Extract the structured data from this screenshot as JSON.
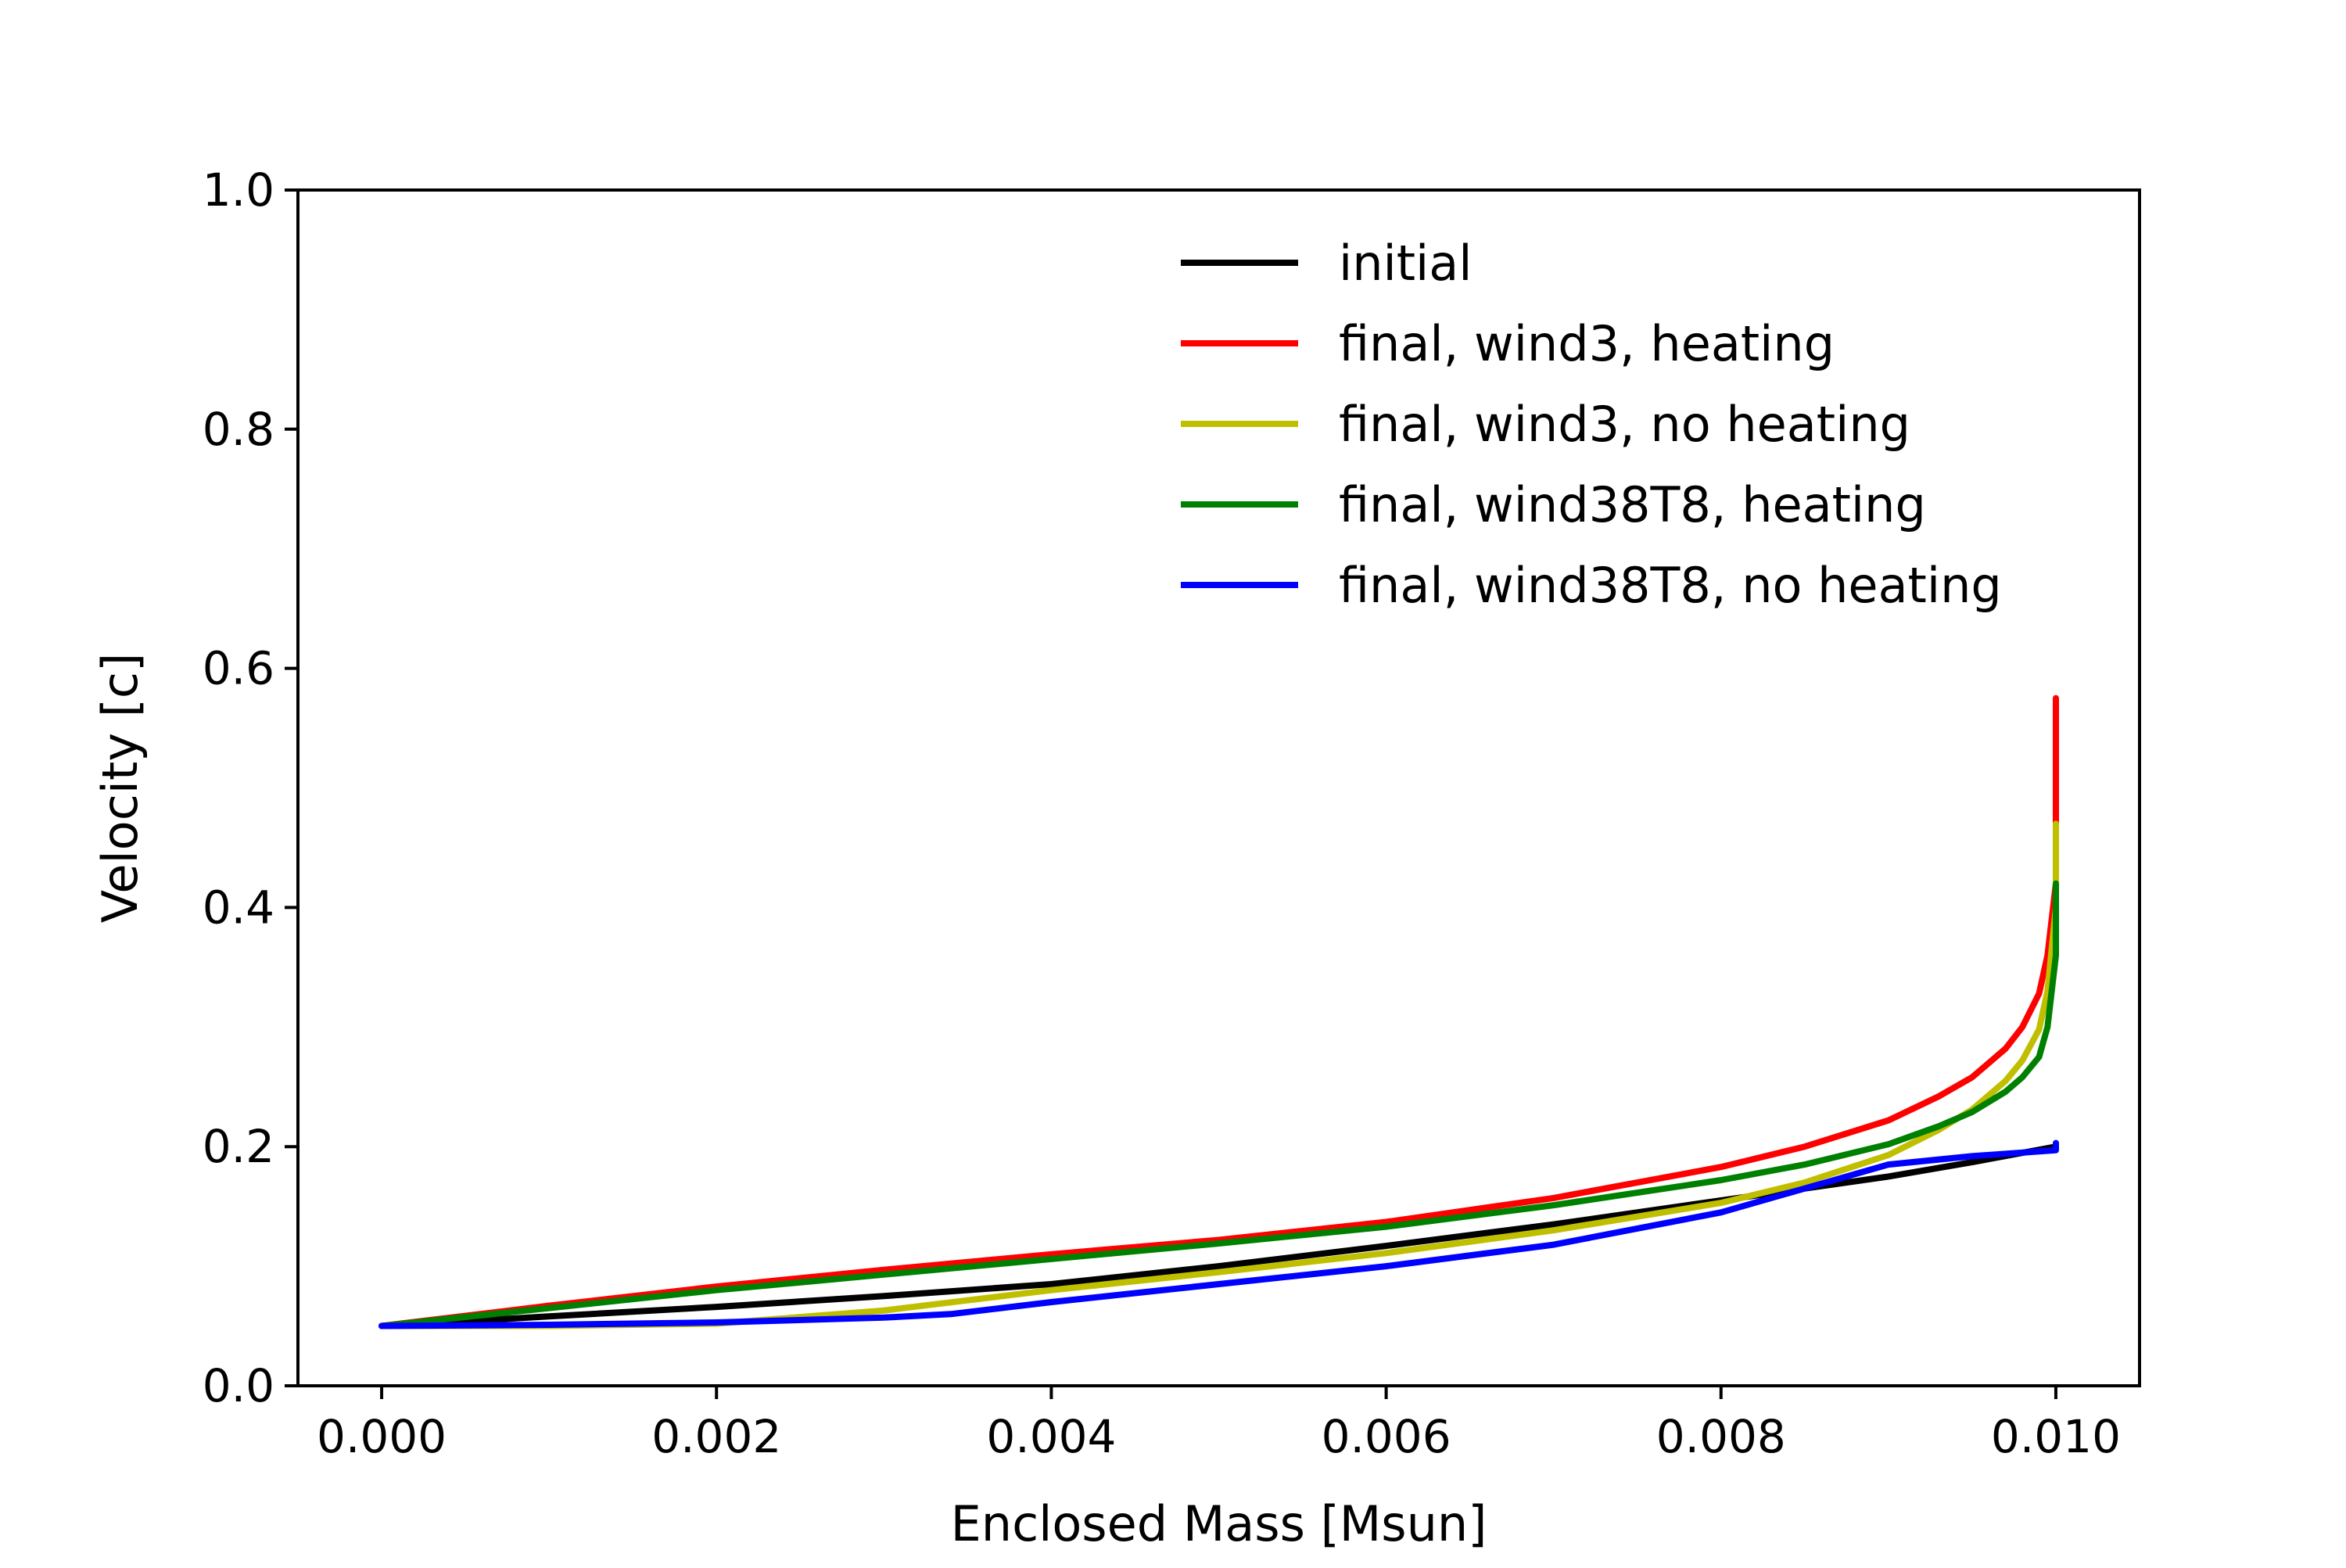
{
  "chart_data": {
    "type": "line",
    "title": "",
    "xlabel": "Enclosed Mass [Msun]",
    "ylabel": "Velocity [c]",
    "xlim": [
      -0.0005,
      0.0105
    ],
    "ylim": [
      0.0,
      1.0
    ],
    "x_ticks": [
      "0.000",
      "0.002",
      "0.004",
      "0.006",
      "0.008",
      "0.010"
    ],
    "y_ticks": [
      "0.0",
      "0.2",
      "0.4",
      "0.6",
      "0.8",
      "1.0"
    ],
    "legend_position": "top-right",
    "grid": false,
    "series": [
      {
        "name": "initial",
        "color": "#000000",
        "x": [
          0.0,
          0.001,
          0.002,
          0.003,
          0.004,
          0.005,
          0.006,
          0.007,
          0.008,
          0.009,
          0.0095,
          0.01
        ],
        "y": [
          0.05,
          0.058,
          0.066,
          0.075,
          0.085,
          0.1,
          0.117,
          0.135,
          0.155,
          0.175,
          0.187,
          0.2
        ]
      },
      {
        "name": "final, wind3, heating",
        "color": "#ff0000",
        "x": [
          0.0,
          0.001,
          0.002,
          0.003,
          0.004,
          0.005,
          0.006,
          0.007,
          0.008,
          0.0085,
          0.009,
          0.0093,
          0.0095,
          0.0097,
          0.0098,
          0.0099,
          0.00995,
          0.01,
          0.01,
          0.01
        ],
        "y": [
          0.05,
          0.067,
          0.083,
          0.097,
          0.11,
          0.122,
          0.137,
          0.157,
          0.183,
          0.2,
          0.222,
          0.242,
          0.258,
          0.282,
          0.3,
          0.328,
          0.36,
          0.42,
          0.5,
          0.575
        ]
      },
      {
        "name": "final, wind3, no heating",
        "color": "#bfbf00",
        "x": [
          0.0,
          0.001,
          0.002,
          0.003,
          0.004,
          0.005,
          0.006,
          0.007,
          0.008,
          0.0085,
          0.009,
          0.0093,
          0.0095,
          0.0097,
          0.0098,
          0.0099,
          0.00995,
          0.01,
          0.01
        ],
        "y": [
          0.05,
          0.05,
          0.052,
          0.063,
          0.08,
          0.095,
          0.111,
          0.13,
          0.153,
          0.17,
          0.193,
          0.214,
          0.231,
          0.255,
          0.272,
          0.298,
          0.33,
          0.4,
          0.47
        ]
      },
      {
        "name": "final, wind38T8, heating",
        "color": "#008000",
        "x": [
          0.0,
          0.001,
          0.002,
          0.003,
          0.004,
          0.005,
          0.006,
          0.007,
          0.008,
          0.0085,
          0.009,
          0.0093,
          0.0095,
          0.0097,
          0.0098,
          0.0099,
          0.00995,
          0.01,
          0.01
        ],
        "y": [
          0.05,
          0.065,
          0.08,
          0.093,
          0.106,
          0.119,
          0.133,
          0.151,
          0.172,
          0.185,
          0.202,
          0.217,
          0.229,
          0.246,
          0.258,
          0.275,
          0.3,
          0.36,
          0.42
        ]
      },
      {
        "name": "final, wind38T8, no heating",
        "color": "#0000ff",
        "x": [
          0.0,
          0.001,
          0.002,
          0.003,
          0.0034,
          0.004,
          0.005,
          0.006,
          0.007,
          0.008,
          0.0085,
          0.009,
          0.0095,
          0.01,
          0.01
        ],
        "y": [
          0.05,
          0.051,
          0.053,
          0.057,
          0.06,
          0.07,
          0.085,
          0.1,
          0.118,
          0.145,
          0.165,
          0.185,
          0.192,
          0.197,
          0.203
        ]
      }
    ]
  }
}
